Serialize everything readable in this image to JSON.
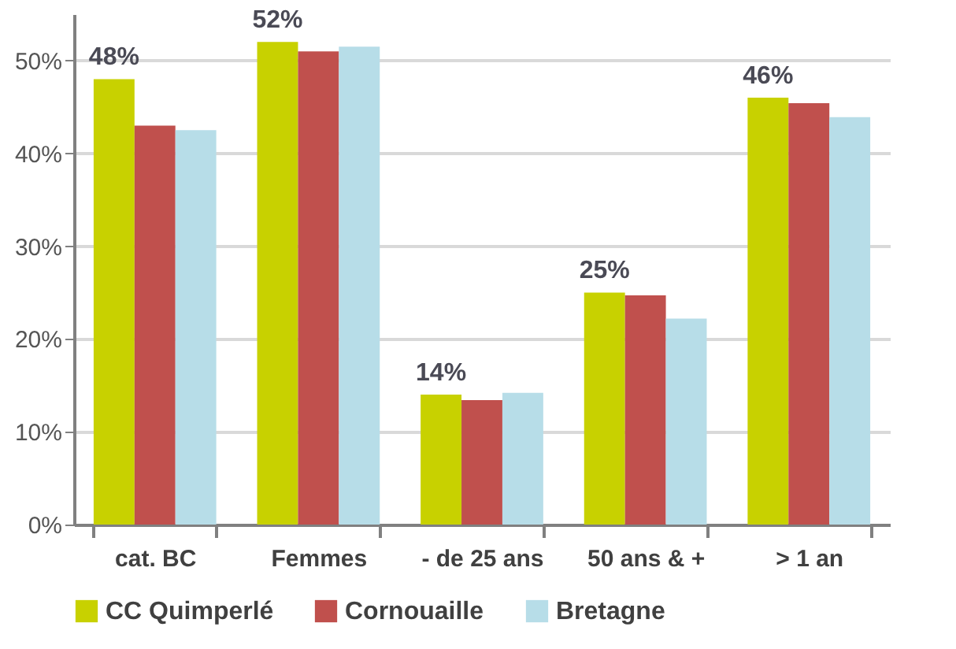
{
  "chart_data": {
    "type": "bar",
    "categories": [
      "cat. BC",
      "Femmes",
      "- de 25 ans",
      "50 ans & +",
      "> 1 an"
    ],
    "series": [
      {
        "name": "CC Quimperlé",
        "color": "#c8d100",
        "values": [
          48,
          52,
          14,
          25,
          46
        ],
        "value_labels": [
          "48%",
          "52%",
          "14%",
          "25%",
          "46%"
        ]
      },
      {
        "name": "Cornouaille",
        "color": "#c0504d",
        "values": [
          43.0,
          51.0,
          13.4,
          24.7,
          45.4
        ]
      },
      {
        "name": "Bretagne",
        "color": "#b7dde8",
        "values": [
          42.5,
          51.5,
          14.2,
          22.2,
          43.9
        ]
      }
    ],
    "ylim": [
      0,
      55
    ],
    "yticks": [
      {
        "value": 0,
        "label": "0%"
      },
      {
        "value": 10,
        "label": "10%"
      },
      {
        "value": 20,
        "label": "20%"
      },
      {
        "value": 30,
        "label": "30%"
      },
      {
        "value": 40,
        "label": "40%"
      },
      {
        "value": 50,
        "label": "50%"
      }
    ],
    "grid": "y",
    "legend": "bottom"
  }
}
